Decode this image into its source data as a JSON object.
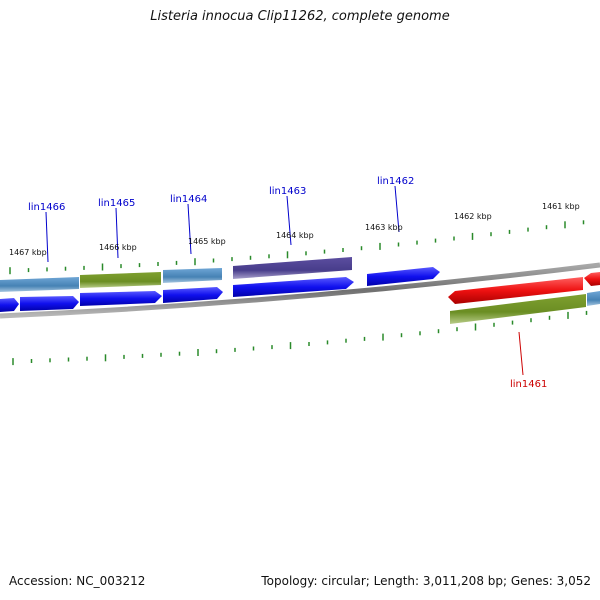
{
  "title": "Listeria innocua Clip11262, complete genome",
  "footer": {
    "accession": "Accession: NC_003212",
    "topology": "Topology: circular; Length: 3,011,208 bp; Genes: 3,052"
  },
  "scale_labels": [
    "1467 kbp",
    "1466 kbp",
    "1465 kbp",
    "1464 kbp",
    "1463 kbp",
    "1462 kbp",
    "1461 kbp"
  ],
  "gene_labels": [
    {
      "text": "lin1466",
      "strand": "forward"
    },
    {
      "text": "lin1465",
      "strand": "forward"
    },
    {
      "text": "lin1464",
      "strand": "forward"
    },
    {
      "text": "lin1463",
      "strand": "forward"
    },
    {
      "text": "lin1462",
      "strand": "forward"
    },
    {
      "text": "lin1461",
      "strand": "reverse"
    }
  ],
  "colors": {
    "forward_label": "#0000cc",
    "reverse_label": "#cc0000",
    "forward_gene": "#1a1aee",
    "reverse_gene": "#ee1111",
    "cog_steel": "#4f8cc0",
    "cog_olive": "#6b8e23",
    "cog_purple": "#483d8b",
    "backbone": "#808080",
    "tick": "#2a8a2a"
  }
}
